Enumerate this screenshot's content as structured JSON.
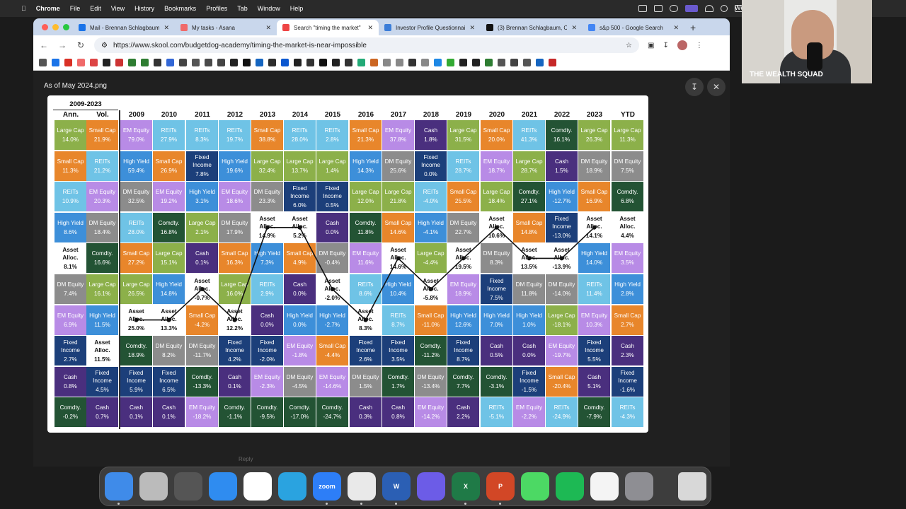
{
  "menubar": {
    "app": "Chrome",
    "items": [
      "File",
      "Edit",
      "View",
      "History",
      "Bookmarks",
      "Profiles",
      "Tab",
      "Window",
      "Help"
    ],
    "clock": "Wed"
  },
  "tabs": [
    {
      "label": "Mail - Brennan Schlagbaum",
      "color": "#1a73e8"
    },
    {
      "label": "My tasks - Asana",
      "color": "#f06a6a"
    },
    {
      "label": "Search \"timing the market\"",
      "color": "#e44",
      "active": true
    },
    {
      "label": "Investor Profile Questionnaire",
      "color": "#3b7dd8"
    },
    {
      "label": "(3) Brennan Schlagbaum, C",
      "color": "#111"
    },
    {
      "label": "s&p 500 - Google Search",
      "color": "#4285f4"
    }
  ],
  "address": {
    "url": "https://www.skool.com/budgetdog-academy/timing-the-market-is-near-impossible"
  },
  "viewer": {
    "title": "As of May 2024.png",
    "reply_text": "Reply"
  },
  "chart_data": {
    "type": "table",
    "period_label": "2009-2023",
    "headers": [
      "Ann.",
      "Vol.",
      "2009",
      "2010",
      "2011",
      "2012",
      "2013",
      "2014",
      "2015",
      "2016",
      "2017",
      "2018",
      "2019",
      "2020",
      "2021",
      "2022",
      "2023",
      "YTD"
    ],
    "colors": {
      "Large Cap": "#8cb04a",
      "Small Cap": "#e8862b",
      "REITs": "#6fc3e6",
      "EM Equity": "#b88be6",
      "Cash": "#4a2f7e",
      "Comdty.": "#235334",
      "High Yield": "#3d8fd9",
      "Fixed Income": "#1c3f7a",
      "DM Equity": "#8c8c8c",
      "Asset Alloc.": "#ffffff"
    },
    "columns": [
      [
        [
          "Large Cap",
          "14.0%"
        ],
        [
          "Small Cap",
          "11.3%"
        ],
        [
          "REITs",
          "10.9%"
        ],
        [
          "High Yield",
          "8.6%"
        ],
        [
          "Asset Alloc.",
          "8.1%"
        ],
        [
          "DM Equity",
          "7.4%"
        ],
        [
          "EM Equity",
          "6.9%"
        ],
        [
          "Fixed Income",
          "2.7%"
        ],
        [
          "Cash",
          "0.8%"
        ],
        [
          "Comdty.",
          "-0.2%"
        ]
      ],
      [
        [
          "Small Cap",
          "21.9%"
        ],
        [
          "REITs",
          "21.2%"
        ],
        [
          "EM Equity",
          "20.3%"
        ],
        [
          "DM Equity",
          "18.4%"
        ],
        [
          "Comdty.",
          "16.6%"
        ],
        [
          "Large Cap",
          "16.1%"
        ],
        [
          "High Yield",
          "11.5%"
        ],
        [
          "Asset Alloc.",
          "11.5%"
        ],
        [
          "Fixed Income",
          "4.5%"
        ],
        [
          "Cash",
          "0.7%"
        ]
      ],
      [
        [
          "EM Equity",
          "79.0%"
        ],
        [
          "High Yield",
          "59.4%"
        ],
        [
          "DM Equity",
          "32.5%"
        ],
        [
          "REITs",
          "28.0%"
        ],
        [
          "Small Cap",
          "27.2%"
        ],
        [
          "Large Cap",
          "26.5%"
        ],
        [
          "Asset Alloc.",
          "25.0%"
        ],
        [
          "Comdty.",
          "18.9%"
        ],
        [
          "Fixed Income",
          "5.9%"
        ],
        [
          "Cash",
          "0.1%"
        ]
      ],
      [
        [
          "REITs",
          "27.9%"
        ],
        [
          "Small Cap",
          "26.9%"
        ],
        [
          "EM Equity",
          "19.2%"
        ],
        [
          "Comdty.",
          "16.8%"
        ],
        [
          "Large Cap",
          "15.1%"
        ],
        [
          "High Yield",
          "14.8%"
        ],
        [
          "Asset Alloc.",
          "13.3%"
        ],
        [
          "DM Equity",
          "8.2%"
        ],
        [
          "Fixed Income",
          "6.5%"
        ],
        [
          "Cash",
          "0.1%"
        ]
      ],
      [
        [
          "REITs",
          "8.3%"
        ],
        [
          "Fixed Income",
          "7.8%"
        ],
        [
          "High Yield",
          "3.1%"
        ],
        [
          "Large Cap",
          "2.1%"
        ],
        [
          "Cash",
          "0.1%"
        ],
        [
          "Asset Alloc.",
          "-0.7%"
        ],
        [
          "Small Cap",
          "-4.2%"
        ],
        [
          "DM Equity",
          "-11.7%"
        ],
        [
          "Comdty.",
          "-13.3%"
        ],
        [
          "EM Equity",
          "-18.2%"
        ]
      ],
      [
        [
          "REITs",
          "19.7%"
        ],
        [
          "High Yield",
          "19.6%"
        ],
        [
          "EM Equity",
          "18.6%"
        ],
        [
          "DM Equity",
          "17.9%"
        ],
        [
          "Small Cap",
          "16.3%"
        ],
        [
          "Large Cap",
          "16.0%"
        ],
        [
          "Asset Alloc.",
          "12.2%"
        ],
        [
          "Fixed Income",
          "4.2%"
        ],
        [
          "Cash",
          "0.1%"
        ],
        [
          "Comdty.",
          "-1.1%"
        ]
      ],
      [
        [
          "Small Cap",
          "38.8%"
        ],
        [
          "Large Cap",
          "32.4%"
        ],
        [
          "DM Equity",
          "23.3%"
        ],
        [
          "Asset Alloc.",
          "14.9%"
        ],
        [
          "High Yield",
          "7.3%"
        ],
        [
          "REITs",
          "2.9%"
        ],
        [
          "Cash",
          "0.0%"
        ],
        [
          "Fixed Income",
          "-2.0%"
        ],
        [
          "EM Equity",
          "-2.3%"
        ],
        [
          "Comdty.",
          "-9.5%"
        ]
      ],
      [
        [
          "REITs",
          "28.0%"
        ],
        [
          "Large Cap",
          "13.7%"
        ],
        [
          "Fixed Income",
          "6.0%"
        ],
        [
          "Asset Alloc.",
          "5.2%"
        ],
        [
          "Small Cap",
          "4.9%"
        ],
        [
          "Cash",
          "0.0%"
        ],
        [
          "High Yield",
          "0.0%"
        ],
        [
          "EM Equity",
          "-1.8%"
        ],
        [
          "DM Equity",
          "-4.5%"
        ],
        [
          "Comdty.",
          "-17.0%"
        ]
      ],
      [
        [
          "REITs",
          "2.8%"
        ],
        [
          "Large Cap",
          "1.4%"
        ],
        [
          "Fixed Income",
          "0.5%"
        ],
        [
          "Cash",
          "0.0%"
        ],
        [
          "DM Equity",
          "-0.4%"
        ],
        [
          "Asset Alloc.",
          "-2.0%"
        ],
        [
          "High Yield",
          "-2.7%"
        ],
        [
          "Small Cap",
          "-4.4%"
        ],
        [
          "EM Equity",
          "-14.6%"
        ],
        [
          "Comdty.",
          "-24.7%"
        ]
      ],
      [
        [
          "Small Cap",
          "21.3%"
        ],
        [
          "High Yield",
          "14.3%"
        ],
        [
          "Large Cap",
          "12.0%"
        ],
        [
          "Comdty.",
          "11.8%"
        ],
        [
          "EM Equity",
          "11.6%"
        ],
        [
          "REITs",
          "8.6%"
        ],
        [
          "Asset Alloc.",
          "8.3%"
        ],
        [
          "Fixed Income",
          "2.6%"
        ],
        [
          "DM Equity",
          "1.5%"
        ],
        [
          "Cash",
          "0.3%"
        ]
      ],
      [
        [
          "EM Equity",
          "37.8%"
        ],
        [
          "DM Equity",
          "25.6%"
        ],
        [
          "Large Cap",
          "21.8%"
        ],
        [
          "Small Cap",
          "14.6%"
        ],
        [
          "Asset Alloc.",
          "14.6%"
        ],
        [
          "High Yield",
          "10.4%"
        ],
        [
          "REITs",
          "8.7%"
        ],
        [
          "Fixed Income",
          "3.5%"
        ],
        [
          "Comdty.",
          "1.7%"
        ],
        [
          "Cash",
          "0.8%"
        ]
      ],
      [
        [
          "Cash",
          "1.8%"
        ],
        [
          "Fixed Income",
          "0.0%"
        ],
        [
          "REITs",
          "-4.0%"
        ],
        [
          "High Yield",
          "-4.1%"
        ],
        [
          "Large Cap",
          "-4.4%"
        ],
        [
          "Asset Alloc.",
          "-5.8%"
        ],
        [
          "Small Cap",
          "-11.0%"
        ],
        [
          "Comdty.",
          "-11.2%"
        ],
        [
          "DM Equity",
          "-13.4%"
        ],
        [
          "EM Equity",
          "-14.2%"
        ]
      ],
      [
        [
          "Large Cap",
          "31.5%"
        ],
        [
          "REITs",
          "28.7%"
        ],
        [
          "Small Cap",
          "25.5%"
        ],
        [
          "DM Equity",
          "22.7%"
        ],
        [
          "Asset Alloc.",
          "19.5%"
        ],
        [
          "EM Equity",
          "18.9%"
        ],
        [
          "High Yield",
          "12.6%"
        ],
        [
          "Fixed Income",
          "8.7%"
        ],
        [
          "Comdty.",
          "7.7%"
        ],
        [
          "Cash",
          "2.2%"
        ]
      ],
      [
        [
          "Small Cap",
          "20.0%"
        ],
        [
          "EM Equity",
          "18.7%"
        ],
        [
          "Large Cap",
          "18.4%"
        ],
        [
          "Asset Alloc.",
          "10.6%"
        ],
        [
          "DM Equity",
          "8.3%"
        ],
        [
          "Fixed Income",
          "7.5%"
        ],
        [
          "High Yield",
          "7.0%"
        ],
        [
          "Cash",
          "0.5%"
        ],
        [
          "Comdty.",
          "-3.1%"
        ],
        [
          "REITs",
          "-5.1%"
        ]
      ],
      [
        [
          "REITs",
          "41.3%"
        ],
        [
          "Large Cap",
          "28.7%"
        ],
        [
          "Comdty.",
          "27.1%"
        ],
        [
          "Small Cap",
          "14.8%"
        ],
        [
          "Asset Alloc.",
          "13.5%"
        ],
        [
          "DM Equity",
          "11.8%"
        ],
        [
          "High Yield",
          "1.0%"
        ],
        [
          "Cash",
          "0.0%"
        ],
        [
          "Fixed Income",
          "-1.5%"
        ],
        [
          "EM Equity",
          "-2.2%"
        ]
      ],
      [
        [
          "Comdty.",
          "16.1%"
        ],
        [
          "Cash",
          "1.5%"
        ],
        [
          "High Yield",
          "-12.7%"
        ],
        [
          "Fixed Income",
          "-13.0%"
        ],
        [
          "Asset Alloc.",
          "-13.9%"
        ],
        [
          "DM Equity",
          "-14.0%"
        ],
        [
          "Large Cap",
          "-18.1%"
        ],
        [
          "EM Equity",
          "-19.7%"
        ],
        [
          "Small Cap",
          "-20.4%"
        ],
        [
          "REITs",
          "-24.9%"
        ]
      ],
      [
        [
          "Large Cap",
          "26.3%"
        ],
        [
          "DM Equity",
          "18.9%"
        ],
        [
          "Small Cap",
          "16.9%"
        ],
        [
          "Asset Alloc.",
          "14.1%"
        ],
        [
          "High Yield",
          "14.0%"
        ],
        [
          "REITs",
          "11.4%"
        ],
        [
          "EM Equity",
          "10.3%"
        ],
        [
          "Fixed Income",
          "5.5%"
        ],
        [
          "Cash",
          "5.1%"
        ],
        [
          "Comdty.",
          "-7.9%"
        ]
      ],
      [
        [
          "Large Cap",
          "11.3%"
        ],
        [
          "DM Equity",
          "7.5%"
        ],
        [
          "Comdty.",
          "6.8%"
        ],
        [
          "Asset Alloc.",
          "4.4%"
        ],
        [
          "EM Equity",
          "3.5%"
        ],
        [
          "High Yield",
          "2.8%"
        ],
        [
          "Small Cap",
          "2.7%"
        ],
        [
          "Cash",
          "2.3%"
        ],
        [
          "Fixed Income",
          "-1.6%"
        ],
        [
          "REITs",
          "-4.3%"
        ]
      ]
    ]
  },
  "facecam": {
    "label": "THE WEALTH SQUAD"
  },
  "dock": [
    {
      "name": "finder",
      "color": "#3f8be9",
      "label": ""
    },
    {
      "name": "launchpad",
      "color": "#bbb",
      "label": ""
    },
    {
      "name": "calculator",
      "color": "#555",
      "label": ""
    },
    {
      "name": "app-store",
      "color": "#2f8cf0",
      "label": ""
    },
    {
      "name": "slack",
      "color": "#fff",
      "label": ""
    },
    {
      "name": "telegram",
      "color": "#2aa3e0",
      "label": ""
    },
    {
      "name": "zoom",
      "color": "#2d7ef7",
      "label": "zoom"
    },
    {
      "name": "chrome",
      "color": "#e9e9e9",
      "label": ""
    },
    {
      "name": "word",
      "color": "#2b5fb4",
      "label": "W"
    },
    {
      "name": "snowflake-app",
      "color": "#6c5ce7",
      "label": ""
    },
    {
      "name": "excel",
      "color": "#1f7a47",
      "label": "X"
    },
    {
      "name": "powerpoint",
      "color": "#d24726",
      "label": "P"
    },
    {
      "name": "messages",
      "color": "#4cd964",
      "label": ""
    },
    {
      "name": "spotify",
      "color": "#1db954",
      "label": ""
    },
    {
      "name": "photos",
      "color": "#f4f4f4",
      "label": ""
    },
    {
      "name": "system-settings",
      "color": "#8e8e93",
      "label": ""
    },
    {
      "name": "trash",
      "color": "#d8d8d8",
      "label": ""
    }
  ]
}
